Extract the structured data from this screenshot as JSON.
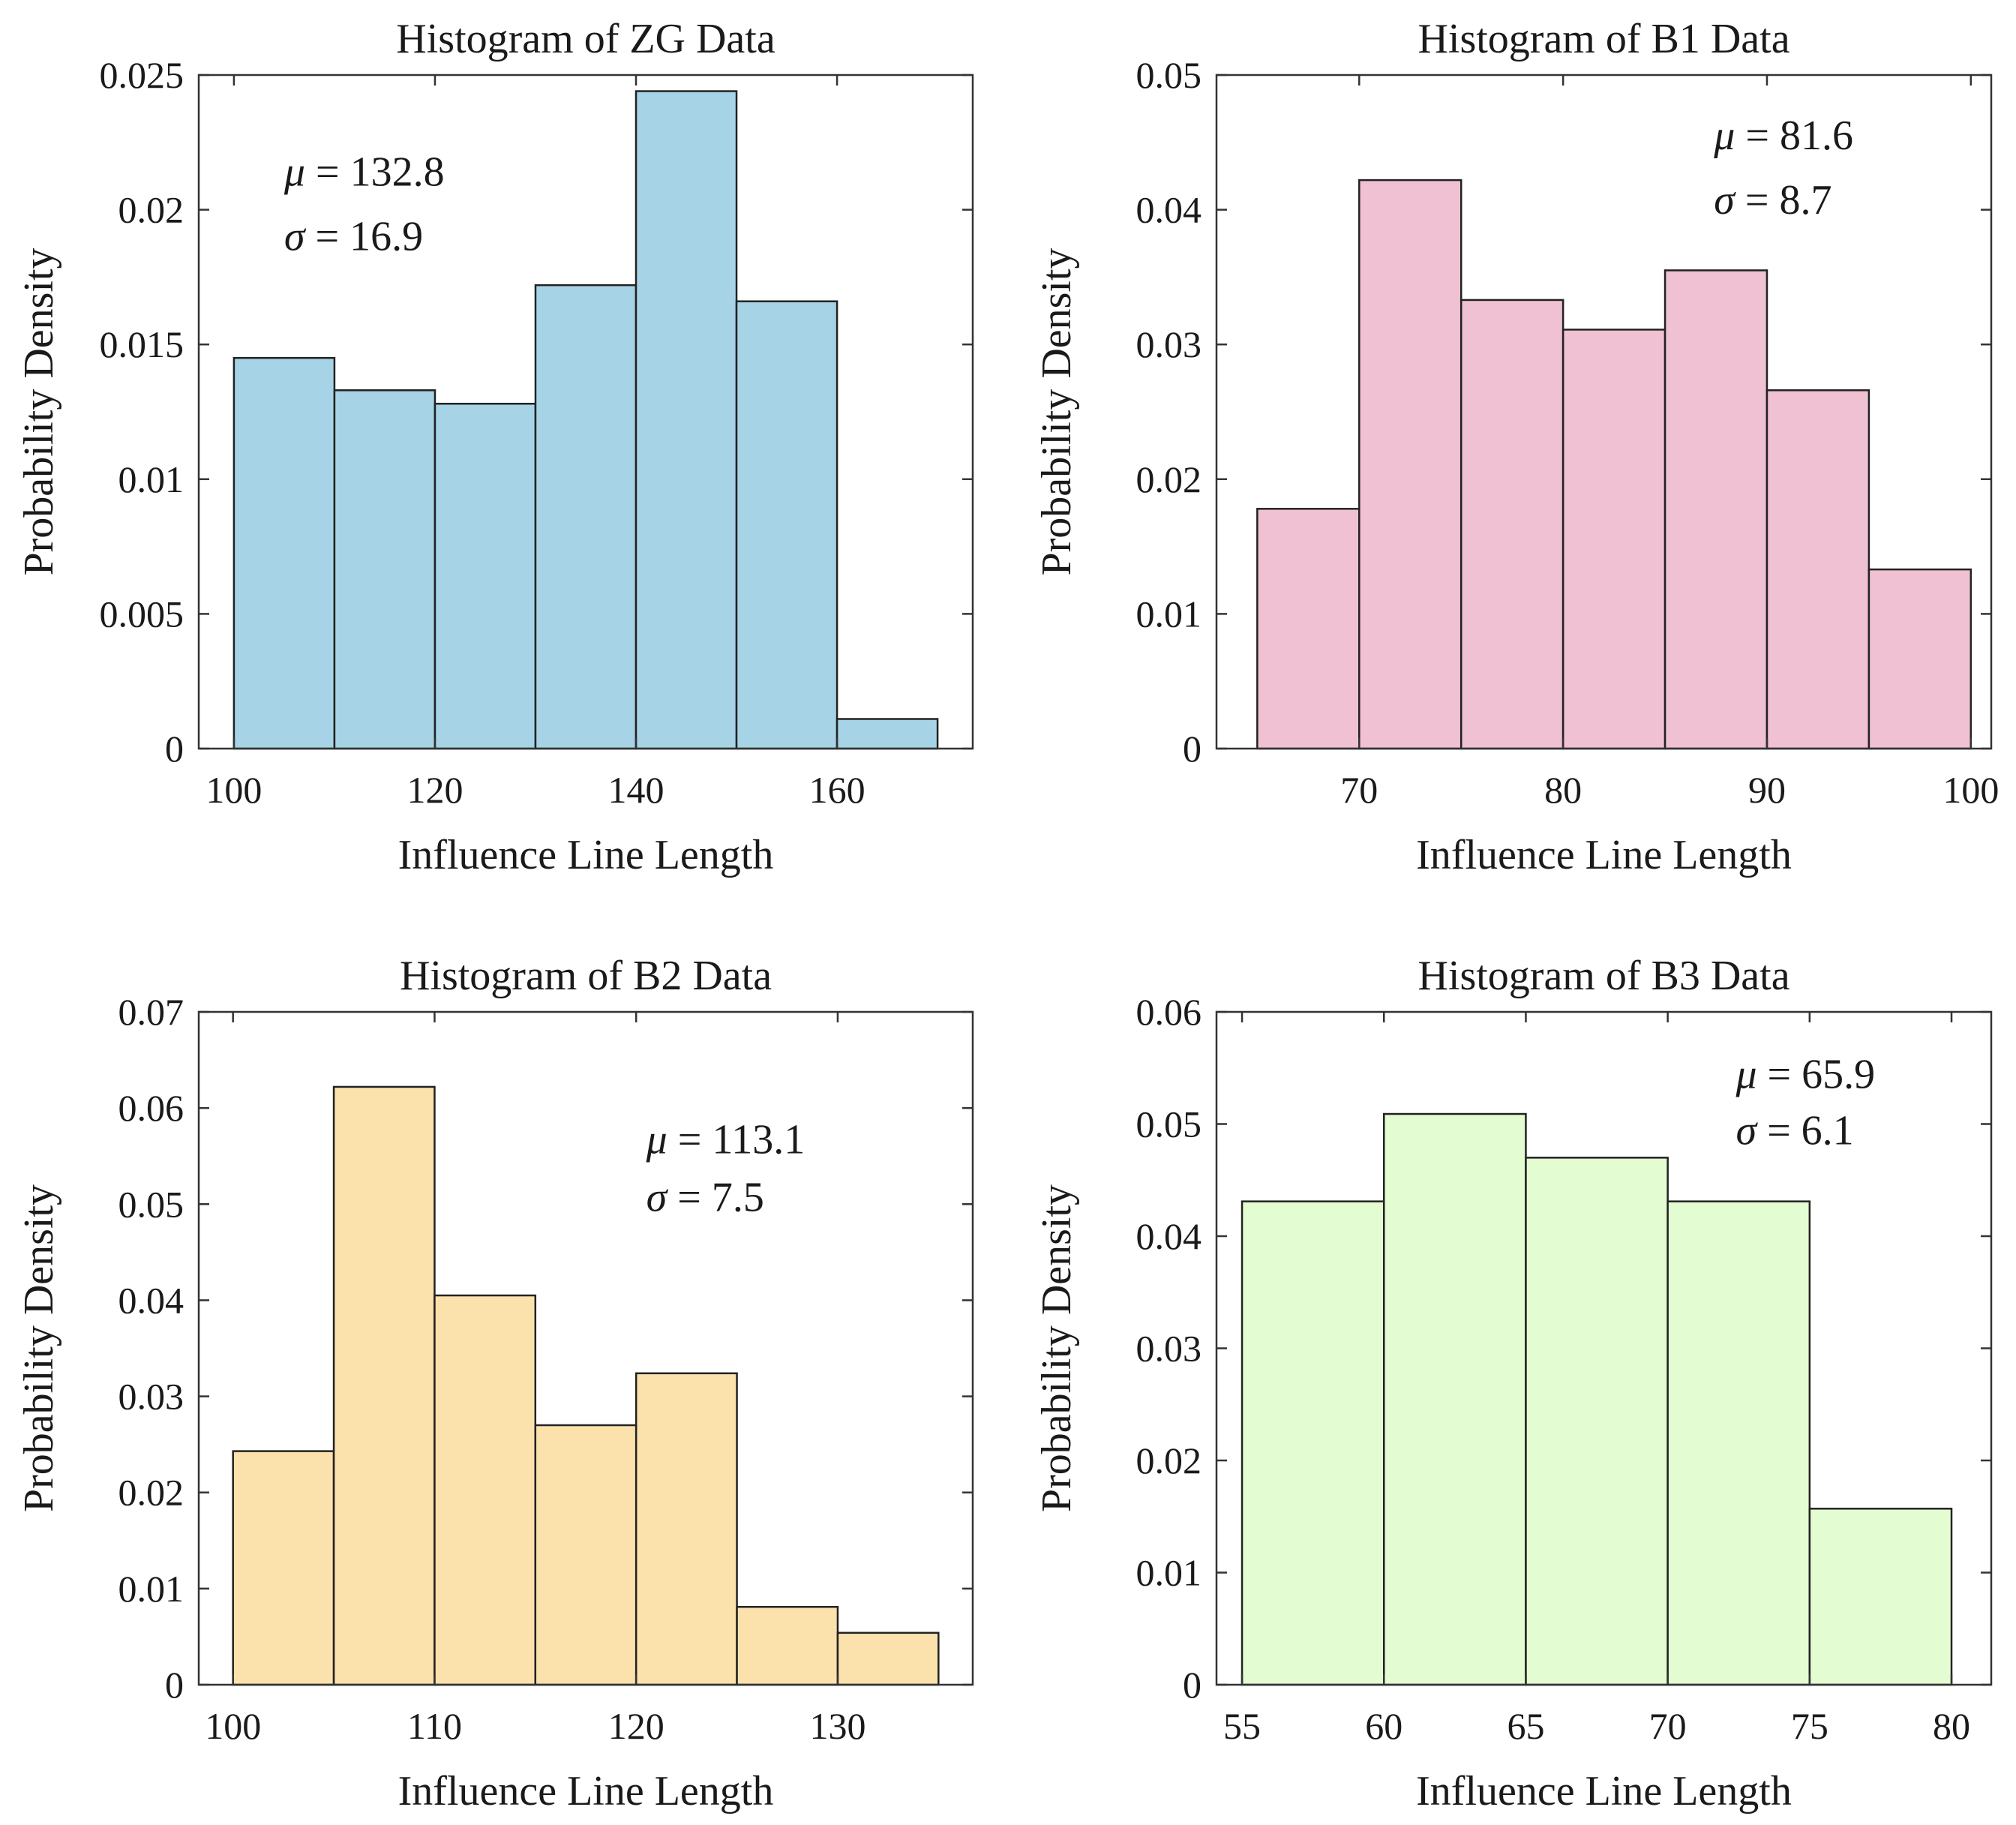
{
  "chart_data": [
    {
      "type": "bar",
      "title": "Histogram of ZG Data",
      "xlabel": "Influence Line Length",
      "ylabel": "Probability Density",
      "bin_edges": [
        100,
        110,
        120,
        130,
        140,
        150,
        160,
        170
      ],
      "values": [
        0.0145,
        0.0133,
        0.0128,
        0.0172,
        0.0244,
        0.0166,
        0.0011
      ],
      "xlim": [
        96.5,
        173.5
      ],
      "ylim": [
        0,
        0.025
      ],
      "xticks": [
        100,
        120,
        140,
        160
      ],
      "xtick_labels": [
        "100",
        "120",
        "140",
        "160"
      ],
      "yticks": [
        0,
        0.005,
        0.01,
        0.015,
        0.02,
        0.025
      ],
      "ytick_labels": [
        "0",
        "0.005",
        "0.01",
        "0.015",
        "0.02",
        "0.025"
      ],
      "color": "#a6d4e6",
      "annotations": [
        {
          "symbol": "μ",
          "text": " = 132.8",
          "x": 105,
          "y": 0.0209
        },
        {
          "symbol": "σ",
          "text": " = 16.9",
          "x": 105,
          "y": 0.0185
        }
      ]
    },
    {
      "type": "bar",
      "title": "Histogram of B1 Data",
      "xlabel": "Influence Line Length",
      "ylabel": "Probability Density",
      "bin_edges": [
        65,
        70,
        75,
        80,
        85,
        90,
        95,
        100
      ],
      "values": [
        0.0178,
        0.0422,
        0.0333,
        0.0311,
        0.0355,
        0.0266,
        0.0133
      ],
      "xlim": [
        63.0,
        101.0
      ],
      "ylim": [
        0,
        0.05
      ],
      "xticks": [
        70,
        80,
        90,
        100
      ],
      "xtick_labels": [
        "70",
        "80",
        "90",
        "100"
      ],
      "yticks": [
        0,
        0.01,
        0.02,
        0.03,
        0.04,
        0.05
      ],
      "ytick_labels": [
        "0",
        "0.01",
        "0.02",
        "0.03",
        "0.04",
        "0.05"
      ],
      "color": "#f0c0d3",
      "annotations": [
        {
          "symbol": "μ",
          "text": " = 81.6",
          "x": 87.4,
          "y": 0.0445
        },
        {
          "symbol": "σ",
          "text": " = 8.7",
          "x": 87.4,
          "y": 0.0397
        }
      ]
    },
    {
      "type": "bar",
      "title": "Histogram of B2 Data",
      "xlabel": "Influence Line Length",
      "ylabel": "Probability Density",
      "bin_edges": [
        100,
        105,
        110,
        115,
        120,
        125,
        130,
        135
      ],
      "values": [
        0.0243,
        0.0622,
        0.0405,
        0.027,
        0.0324,
        0.0081,
        0.0054
      ],
      "xlim": [
        98.3,
        136.7
      ],
      "ylim": [
        0,
        0.07
      ],
      "xticks": [
        100,
        110,
        120,
        130
      ],
      "xtick_labels": [
        "100",
        "110",
        "120",
        "130"
      ],
      "yticks": [
        0,
        0.01,
        0.02,
        0.03,
        0.04,
        0.05,
        0.06,
        0.07
      ],
      "ytick_labels": [
        "0",
        "0.01",
        "0.02",
        "0.03",
        "0.04",
        "0.05",
        "0.06",
        "0.07"
      ],
      "color": "#fbe2ad",
      "annotations": [
        {
          "symbol": "μ",
          "text": " = 113.1",
          "x": 120.5,
          "y": 0.0553
        },
        {
          "symbol": "σ",
          "text": " = 7.5",
          "x": 120.5,
          "y": 0.0493
        }
      ]
    },
    {
      "type": "bar",
      "title": "Histogram of B3 Data",
      "xlabel": "Influence Line Length",
      "ylabel": "Probability Density",
      "bin_edges": [
        55,
        60,
        65,
        70,
        75,
        80
      ],
      "values": [
        0.0431,
        0.0509,
        0.047,
        0.0431,
        0.0157
      ],
      "xlim": [
        54.1,
        81.4
      ],
      "ylim": [
        0,
        0.06
      ],
      "xticks": [
        55,
        60,
        65,
        70,
        75,
        80
      ],
      "xtick_labels": [
        "55",
        "60",
        "65",
        "70",
        "75",
        "80"
      ],
      "yticks": [
        0,
        0.01,
        0.02,
        0.03,
        0.04,
        0.05,
        0.06
      ],
      "ytick_labels": [
        "0",
        "0.01",
        "0.02",
        "0.03",
        "0.04",
        "0.05",
        "0.06"
      ],
      "color": "#e4fcd2",
      "annotations": [
        {
          "symbol": "μ",
          "text": " = 65.9",
          "x": 72.4,
          "y": 0.0532
        },
        {
          "symbol": "σ",
          "text": " = 6.1",
          "x": 72.4,
          "y": 0.0482
        }
      ]
    }
  ]
}
